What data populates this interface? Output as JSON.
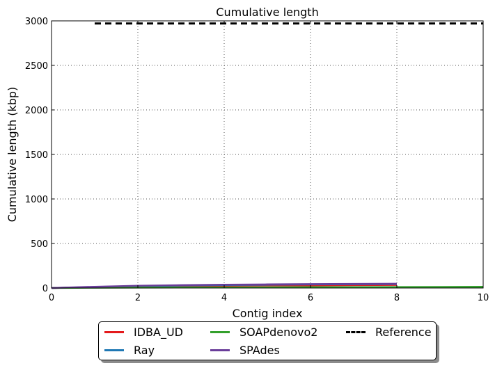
{
  "chart_data": {
    "type": "line",
    "title": "Cumulative length",
    "xlabel": "Contig index",
    "ylabel": "Cumulative length (kbp)",
    "xlim": [
      0,
      10
    ],
    "ylim": [
      0,
      3000
    ],
    "x_ticks": [
      "0",
      "2",
      "4",
      "6",
      "8",
      "10"
    ],
    "y_ticks": [
      "0",
      "500",
      "1000",
      "1500",
      "2000",
      "2500",
      "3000"
    ],
    "grid": true,
    "legend_position": "bottom-outside",
    "series": [
      {
        "name": "IDBA_UD",
        "color": "#e41a1c",
        "x": [
          0,
          1,
          2,
          3,
          4,
          5,
          6,
          7,
          8
        ],
        "y": [
          0,
          10,
          18,
          22,
          25,
          28,
          30,
          32,
          34
        ]
      },
      {
        "name": "Ray",
        "color": "#1f78b4",
        "x": [
          0,
          1,
          2,
          3,
          4,
          5,
          6,
          7,
          8
        ],
        "y": [
          0,
          12,
          22,
          28,
          33,
          37,
          40,
          42,
          44
        ]
      },
      {
        "name": "SOAPdenovo2",
        "color": "#33a02c",
        "x": [
          0,
          1,
          2,
          3,
          4,
          5,
          6,
          7,
          8,
          9,
          10
        ],
        "y": [
          0,
          3,
          5,
          6,
          7,
          8,
          9,
          10,
          11,
          12,
          13
        ]
      },
      {
        "name": "SPAdes",
        "color": "#6a3d9a",
        "x": [
          0,
          1,
          2,
          3,
          4,
          5,
          6,
          7,
          8
        ],
        "y": [
          0,
          14,
          26,
          32,
          37,
          41,
          44,
          46,
          48
        ]
      },
      {
        "name": "Reference",
        "color": "#000000",
        "dashed": true,
        "x": [
          1,
          10
        ],
        "y": [
          2970,
          2970
        ]
      }
    ]
  }
}
